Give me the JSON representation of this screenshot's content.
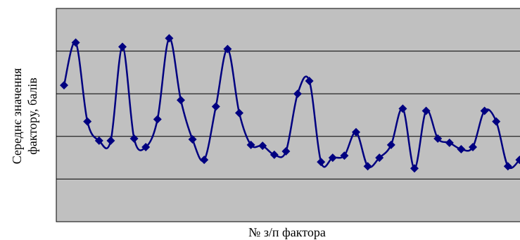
{
  "chart_data": {
    "type": "line",
    "x_label": "№ з/п фактора",
    "y_label": [
      "Середнє значення",
      "фактору, балів"
    ],
    "series": [
      {
        "color": "#000080",
        "values": [
          3.2,
          4.2,
          2.35,
          1.9,
          1.9,
          4.1,
          1.95,
          1.75,
          2.4,
          4.3,
          2.85,
          1.93,
          1.45,
          2.7,
          4.05,
          2.55,
          1.8,
          1.78,
          1.57,
          1.65,
          3.0,
          3.3,
          1.4,
          1.5,
          1.55,
          2.1,
          1.3,
          1.5,
          1.8,
          2.65,
          1.25,
          2.6,
          1.95,
          1.85,
          1.7,
          1.75,
          2.6,
          2.35,
          1.3,
          1.45
        ]
      }
    ],
    "ylim": [
      0,
      5
    ],
    "yticks": [
      1,
      2,
      3,
      4
    ],
    "grid": true,
    "smooth": true,
    "marker": "diamond",
    "background": "#c0c0c0"
  }
}
